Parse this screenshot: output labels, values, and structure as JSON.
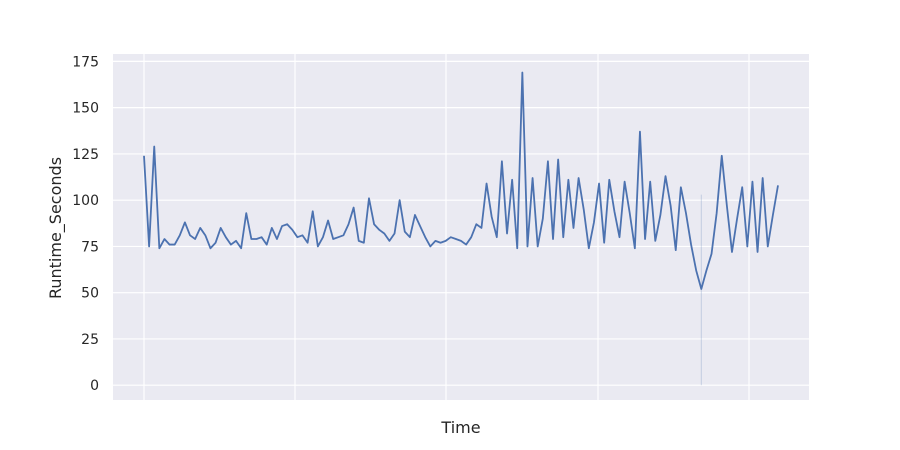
{
  "chart_data": {
    "type": "line",
    "title": "",
    "xlabel": "Time",
    "ylabel": "Runtime_Seconds",
    "ylim": [
      -8,
      179
    ],
    "yticks": [
      0,
      25,
      50,
      75,
      100,
      125,
      150,
      175
    ],
    "x_ticks_labeled": false,
    "grid": true,
    "background": "#eaeaf2",
    "line_color": "#4c72b0",
    "series": [
      {
        "values": [
          124,
          75,
          129,
          74,
          79,
          76,
          76,
          81,
          88,
          81,
          79,
          85,
          81,
          74,
          77,
          85,
          80,
          76,
          78,
          74,
          93,
          79,
          79,
          80,
          76,
          85,
          79,
          86,
          87,
          84,
          80,
          81,
          77,
          94,
          75,
          80,
          89,
          79,
          80,
          81,
          87,
          96,
          78,
          77,
          101,
          87,
          84,
          82,
          78,
          82,
          100,
          83,
          80,
          92,
          86,
          80,
          75,
          78,
          77,
          78,
          80,
          79,
          78,
          76,
          80,
          87,
          85,
          109,
          91,
          80,
          121,
          82,
          111,
          74,
          169,
          75,
          112,
          75,
          90,
          121,
          79,
          122,
          80,
          111,
          85,
          112,
          95,
          74,
          88,
          109,
          77,
          111,
          94,
          80,
          110,
          93,
          74,
          137,
          79,
          110,
          78,
          92,
          113,
          97,
          73,
          107,
          93,
          76,
          62,
          52,
          62,
          71,
          93,
          124,
          97,
          72,
          90,
          107,
          75,
          110,
          72,
          112,
          75,
          92,
          108
        ]
      }
    ],
    "vertical_marker": {
      "index": 109,
      "from": 0,
      "to": 103
    }
  }
}
